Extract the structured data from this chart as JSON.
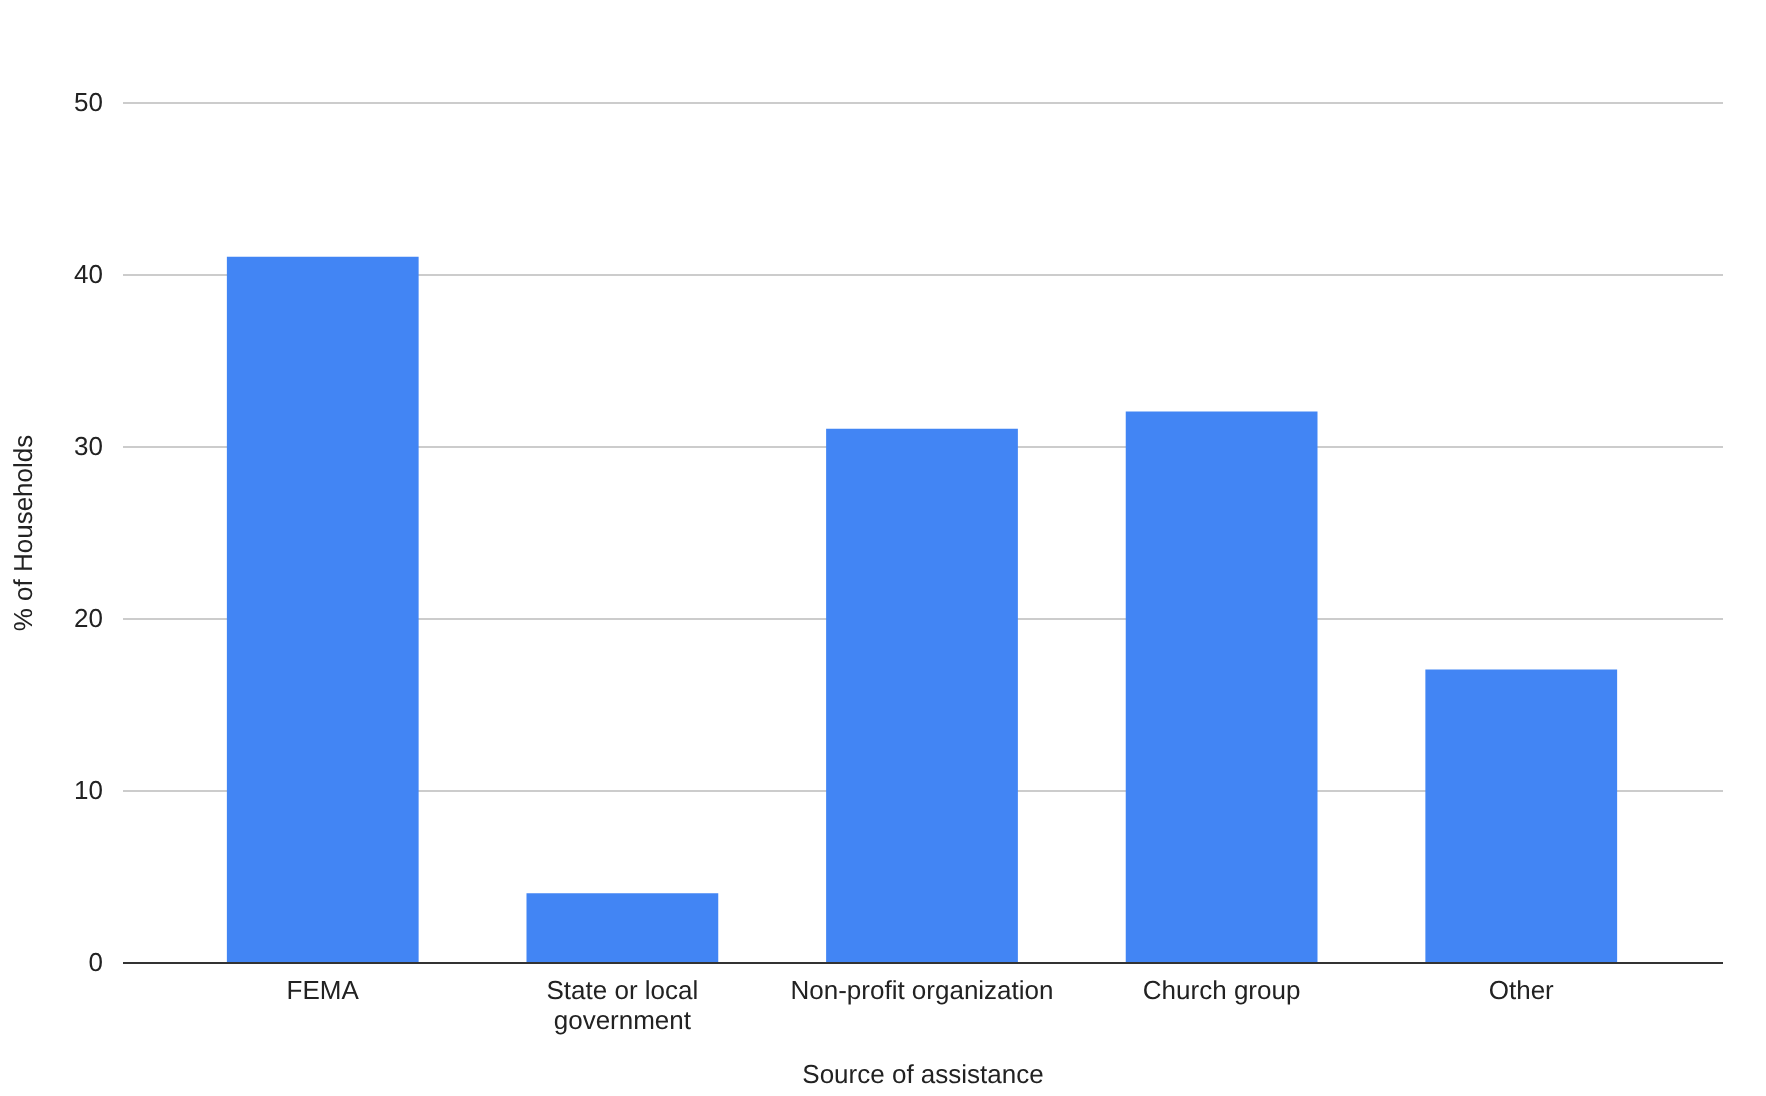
{
  "chart_data": {
    "type": "bar",
    "categories": [
      "FEMA",
      "State or local government",
      "Non-profit organization",
      "Church group",
      "Other"
    ],
    "values": [
      41,
      4,
      31,
      32,
      17
    ],
    "color": "#4285f4",
    "xlabel": "Source of assistance",
    "ylabel": "% of Households",
    "ylim": [
      0,
      50
    ],
    "yticks": [
      0,
      10,
      20,
      30,
      40,
      50
    ],
    "grid": "y"
  }
}
